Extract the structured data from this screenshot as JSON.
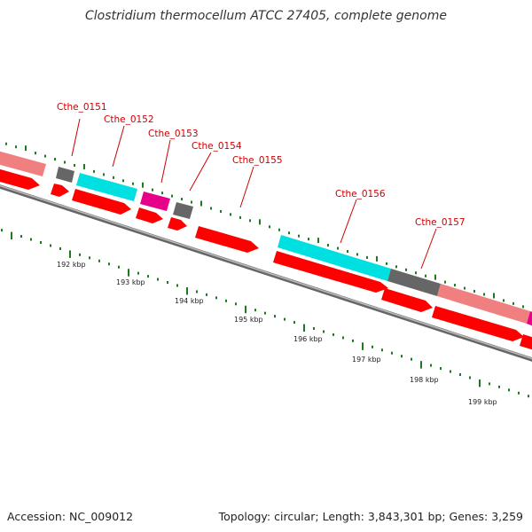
{
  "title": "Clostridium thermocellum ATCC 27405, complete genome",
  "footer": {
    "accession": "Accession: NC_009012",
    "topology": "Topology: circular; Length: 3,843,301 bp; Genes: 3,259"
  },
  "colors": {
    "cds_reverse_strand": "#ff0000",
    "backbone": "#888888",
    "tick": "#1f7a1f",
    "label": "#cc0000",
    "salmon": "#f08080",
    "cyan": "#00e0e0",
    "magenta": "#e6008a",
    "gray": "#666666"
  },
  "gene_labels": [
    "Cthe_0151",
    "Cthe_0152",
    "Cthe_0153",
    "Cthe_0154",
    "Cthe_0155",
    "Cthe_0156",
    "Cthe_0157"
  ],
  "scale_labels": [
    "192 kbp",
    "193 kbp",
    "194 kbp",
    "195 kbp",
    "196 kbp",
    "197 kbp",
    "198 kbp",
    "199 kbp"
  ]
}
